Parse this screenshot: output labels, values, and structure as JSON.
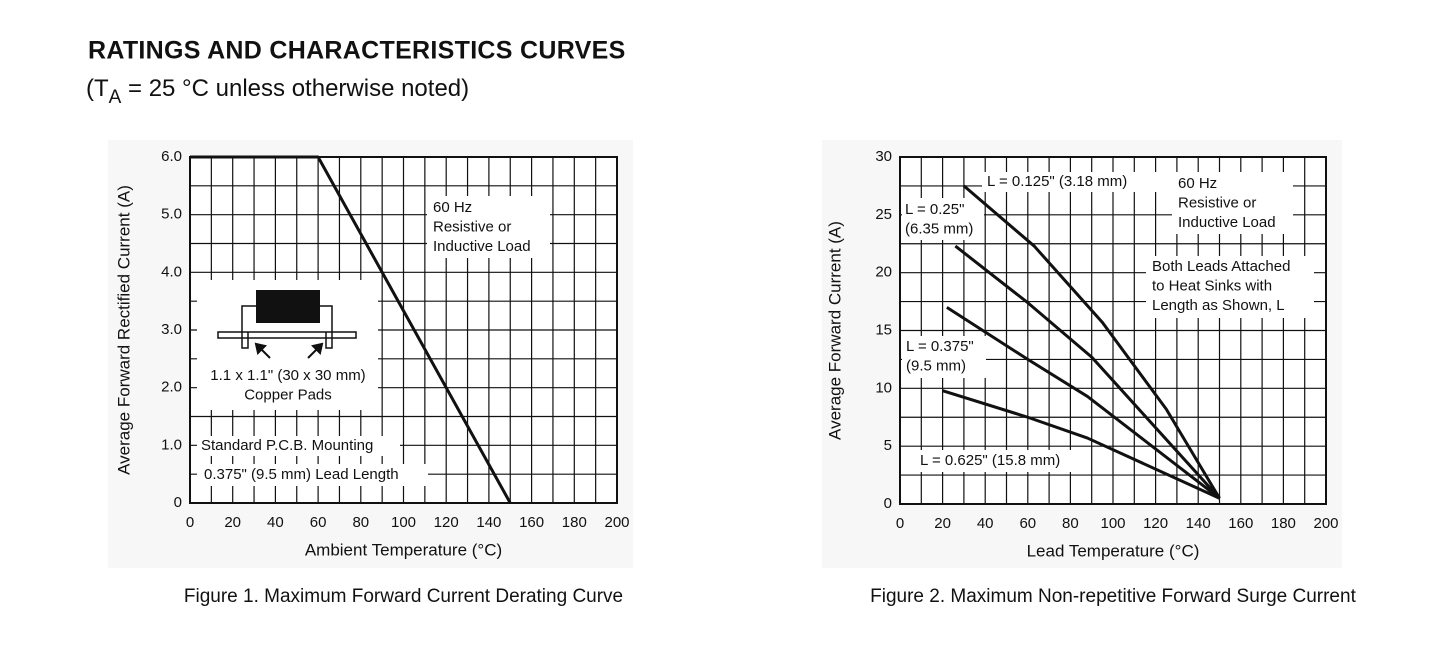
{
  "header": {
    "title": "RATINGS AND CHARACTERISTICS CURVES",
    "subtitle": [
      "(T",
      "A",
      " = 25 °C unless otherwise noted)"
    ]
  },
  "chart_data": [
    {
      "type": "line",
      "caption": "Figure 1. Maximum Forward Current Derating Curve",
      "x_label": "Ambient Temperature (°C)",
      "y_label": "Average Forward Rectified Current (A)",
      "xlim": [
        0,
        200
      ],
      "xticks": [
        0,
        20,
        40,
        60,
        80,
        100,
        120,
        140,
        160,
        180,
        200
      ],
      "ylim": [
        0,
        6
      ],
      "yticks": [
        0,
        {
          "value": 1,
          "label": "1.0"
        },
        {
          "value": 2,
          "label": "2.0"
        },
        {
          "value": 3,
          "label": "3.0"
        },
        {
          "value": 4,
          "label": "4.0"
        },
        {
          "value": 5,
          "label": "5.0"
        },
        {
          "value": 6,
          "label": "6.0"
        }
      ],
      "grid": true,
      "color": "#111111",
      "series": [
        {
          "x": [
            0,
            60,
            150
          ],
          "values": [
            6,
            6,
            0
          ]
        }
      ],
      "annotations": [
        [
          "60 Hz",
          "Resistive or",
          "Inductive Load"
        ],
        [
          "1.1 x 1.1\" (30 x 30 mm)",
          "Copper Pads"
        ],
        [
          "Standard P.C.B. Mounting"
        ],
        [
          "0.375\" (9.5 mm) Lead Length"
        ]
      ]
    },
    {
      "type": "line",
      "caption": "Figure 2. Maximum Non-repetitive Forward Surge Current",
      "x_label": "Lead Temperature (°C)",
      "y_label": "Average Forward Current (A)",
      "xlim": [
        0,
        200
      ],
      "xticks": [
        0,
        20,
        40,
        60,
        80,
        100,
        120,
        140,
        160,
        180,
        200
      ],
      "ylim": [
        0,
        30
      ],
      "yticks": [
        0,
        5,
        10,
        15,
        20,
        25,
        30
      ],
      "grid": true,
      "color": "#111111",
      "series": [
        {
          "label": [
            "L = 0.125\" (3.18 mm)"
          ],
          "x": [
            30,
            63,
            95,
            125,
            150
          ],
          "values": [
            27.5,
            22.3,
            15.7,
            8.2,
            0.5
          ]
        },
        {
          "label": [
            "L = 0.25\"",
            "(6.35 mm)"
          ],
          "x": [
            26,
            60,
            90,
            150
          ],
          "values": [
            22.3,
            17.4,
            12.7,
            0.5
          ]
        },
        {
          "label": [
            "L = 0.375\"",
            "(9.5 mm)"
          ],
          "x": [
            22,
            60,
            88,
            150
          ],
          "values": [
            17,
            12.5,
            9.3,
            0.5
          ]
        },
        {
          "label": [
            "L = 0.625\" (15.8 mm)"
          ],
          "x": [
            20,
            60,
            88,
            150
          ],
          "values": [
            9.8,
            7.5,
            5.7,
            0.5
          ]
        }
      ],
      "annotations": [
        [
          "60 Hz",
          "Resistive or",
          "Inductive Load"
        ],
        [
          "Both Leads Attached",
          "to Heat Sinks with",
          "Length as Shown, L"
        ]
      ]
    }
  ]
}
